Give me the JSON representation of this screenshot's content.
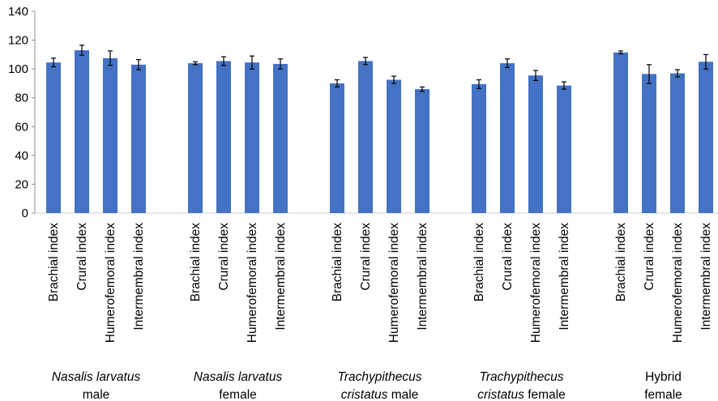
{
  "chart_data": {
    "type": "bar",
    "ylim": [
      0,
      140
    ],
    "yticks": [
      0,
      20,
      40,
      60,
      80,
      100,
      120,
      140
    ],
    "grid": false,
    "legend": "none",
    "bar_color": "#4472c4",
    "groups": [
      {
        "label_lines": [
          [
            {
              "text": "Nasalis larvatus",
              "italic": true
            }
          ],
          [
            {
              "text": "male",
              "italic": false
            }
          ]
        ],
        "bars": [
          {
            "category": "Brachial index",
            "value": 104.5,
            "error": 3
          },
          {
            "category": "Crural index",
            "value": 113,
            "error": 3.5
          },
          {
            "category": "Humerofemoral index",
            "value": 107.5,
            "error": 5
          },
          {
            "category": "Intermembral index",
            "value": 103,
            "error": 3.5
          }
        ]
      },
      {
        "label_lines": [
          [
            {
              "text": "Nasalis larvatus",
              "italic": true
            }
          ],
          [
            {
              "text": "female",
              "italic": false
            }
          ]
        ],
        "bars": [
          {
            "category": "Brachial index",
            "value": 104,
            "error": 1
          },
          {
            "category": "Crural index",
            "value": 105.5,
            "error": 3
          },
          {
            "category": "Humerofemoral index",
            "value": 104.5,
            "error": 4.5
          },
          {
            "category": "Intermembral index",
            "value": 103.5,
            "error": 3.5
          }
        ]
      },
      {
        "label_lines": [
          [
            {
              "text": "Trachypithecus",
              "italic": true
            }
          ],
          [
            {
              "text": "cristatus",
              "italic": true
            },
            {
              "text": " male",
              "italic": false
            }
          ]
        ],
        "bars": [
          {
            "category": "Brachial index",
            "value": 90,
            "error": 2.5
          },
          {
            "category": "Crural index",
            "value": 105.5,
            "error": 2.5
          },
          {
            "category": "Humerofemoral index",
            "value": 92.5,
            "error": 2.5
          },
          {
            "category": "Intermembral index",
            "value": 86,
            "error": 1.5
          }
        ]
      },
      {
        "label_lines": [
          [
            {
              "text": "Trachypithecus",
              "italic": true
            }
          ],
          [
            {
              "text": "cristatus",
              "italic": true
            },
            {
              "text": " female",
              "italic": false
            }
          ]
        ],
        "bars": [
          {
            "category": "Brachial index",
            "value": 89.5,
            "error": 3
          },
          {
            "category": "Crural index",
            "value": 104,
            "error": 3
          },
          {
            "category": "Humerofemoral index",
            "value": 95.5,
            "error": 3.5
          },
          {
            "category": "Intermembral index",
            "value": 88.5,
            "error": 2.5
          }
        ]
      },
      {
        "label_lines": [
          [
            {
              "text": "Hybrid",
              "italic": false
            }
          ],
          [
            {
              "text": "female",
              "italic": false
            }
          ]
        ],
        "bars": [
          {
            "category": "Brachial index",
            "value": 111.5,
            "error": 1
          },
          {
            "category": "Crural index",
            "value": 96.5,
            "error": 6.5
          },
          {
            "category": "Humerofemoral index",
            "value": 97,
            "error": 2.5
          },
          {
            "category": "Intermembral index",
            "value": 105,
            "error": 5
          }
        ]
      }
    ]
  }
}
